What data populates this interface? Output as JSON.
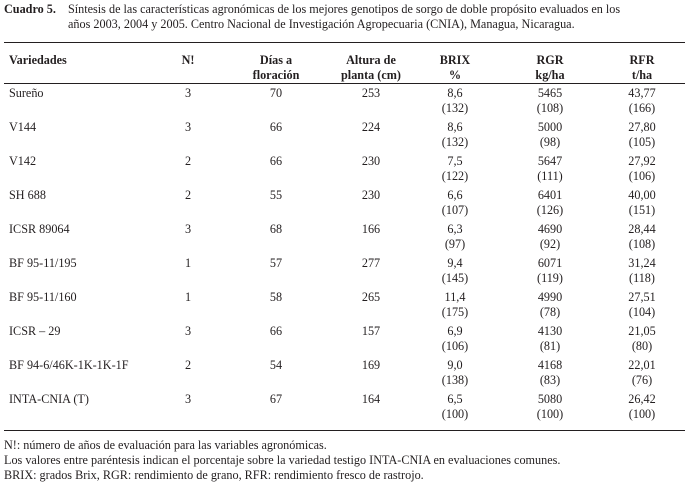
{
  "caption": {
    "label": "Cuadro 5.",
    "line1": "Síntesis de las características agronómicas de los mejores genotipos de sorgo de  doble propósito evaluados en los",
    "line2": "años 2003, 2004 y 2005. Centro Nacional de Investigación Agropecuaria (CNIA), Managua, Nicaragua."
  },
  "table": {
    "headers": {
      "variedades": "Variedades",
      "n": "N!",
      "dias_1": "Días a",
      "dias_2": "floración",
      "altura_1": "Altura de",
      "altura_2": "planta (cm)",
      "brix_1": "BRIX",
      "brix_2": "%",
      "rgr_1": "RGR",
      "rgr_2": "kg/ha",
      "rfr_1": "RFR",
      "rfr_2": "t/ha"
    },
    "rows": [
      {
        "variedad": "Sureño",
        "n": "3",
        "dias": "70",
        "altura": "253",
        "brix": "8,6",
        "brix_pct": "(132)",
        "rgr": "5465",
        "rgr_pct": "(108)",
        "rfr": "43,77",
        "rfr_pct": "(166)"
      },
      {
        "variedad": "V144",
        "n": "3",
        "dias": "66",
        "altura": "224",
        "brix": "8,6",
        "brix_pct": "(132)",
        "rgr": "5000",
        "rgr_pct": "(98)",
        "rfr": "27,80",
        "rfr_pct": "(105)"
      },
      {
        "variedad": "V142",
        "n": "2",
        "dias": "66",
        "altura": "230",
        "brix": "7,5",
        "brix_pct": "(122)",
        "rgr": "5647",
        "rgr_pct": "(111)",
        "rfr": "27,92",
        "rfr_pct": "(106)"
      },
      {
        "variedad": "SH 688",
        "n": "2",
        "dias": "55",
        "altura": "230",
        "brix": "6,6",
        "brix_pct": "(107)",
        "rgr": "6401",
        "rgr_pct": "(126)",
        "rfr": "40,00",
        "rfr_pct": "(151)"
      },
      {
        "variedad": "ICSR 89064",
        "n": "3",
        "dias": "68",
        "altura": "166",
        "brix": "6,3",
        "brix_pct": "(97)",
        "rgr": "4690",
        "rgr_pct": "(92)",
        "rfr": "28,44",
        "rfr_pct": "(108)"
      },
      {
        "variedad": "BF 95-11/195",
        "n": "1",
        "dias": "57",
        "altura": "277",
        "brix": "9,4",
        "brix_pct": "(145)",
        "rgr": "6071",
        "rgr_pct": "(119)",
        "rfr": "31,24",
        "rfr_pct": "(118)"
      },
      {
        "variedad": "BF 95-11/160",
        "n": "1",
        "dias": "58",
        "altura": "265",
        "brix": "11,4",
        "brix_pct": "(175)",
        "rgr": "4990",
        "rgr_pct": "(78)",
        "rfr": "27,51",
        "rfr_pct": "(104)"
      },
      {
        "variedad": "ICSR – 29",
        "n": "3",
        "dias": "66",
        "altura": "157",
        "brix": "6,9",
        "brix_pct": "(106)",
        "rgr": "4130",
        "rgr_pct": "(81)",
        "rfr": "21,05",
        "rfr_pct": "(80)"
      },
      {
        "variedad": "BF 94-6/46K-1K-1K-1F",
        "n": "2",
        "dias": "54",
        "altura": "169",
        "brix": "9,0",
        "brix_pct": "(138)",
        "rgr": "4168",
        "rgr_pct": "(83)",
        "rfr": "22,01",
        "rfr_pct": "(76)"
      },
      {
        "variedad": "INTA-CNIA (T)",
        "n": "3",
        "dias": "67",
        "altura": "164",
        "brix": "6,5",
        "brix_pct": "(100)",
        "rgr": "5080",
        "rgr_pct": "(100)",
        "rfr": "26,42",
        "rfr_pct": "(100)"
      }
    ]
  },
  "notes": [
    "N!: número de años de evaluación para las variables agronómicas.",
    "Los valores entre paréntesis indican el porcentaje sobre la variedad testigo INTA-CNIA en evaluaciones comunes.",
    "BRIX: grados Brix, RGR: rendimiento de grano, RFR: rendimiento fresco de rastrojo."
  ]
}
